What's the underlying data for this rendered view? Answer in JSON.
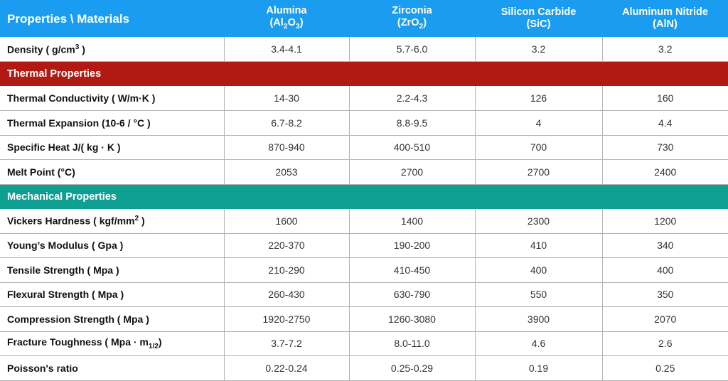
{
  "header": {
    "corner": "Properties \\ Materials",
    "materials": [
      {
        "name": "Alumina",
        "formula_prefix": "(Al",
        "formula_sub1": "2",
        "formula_mid": "O",
        "formula_sub2": "3",
        "formula_suffix": ")"
      },
      {
        "name": "Zirconia",
        "formula_prefix": "(ZrO",
        "formula_sub1": "2",
        "formula_mid": "",
        "formula_sub2": "",
        "formula_suffix": ")"
      },
      {
        "name": "Silicon Carbide",
        "formula_prefix": "(SiC)",
        "formula_sub1": "",
        "formula_mid": "",
        "formula_sub2": "",
        "formula_suffix": ""
      },
      {
        "name": "Aluminum Nitride",
        "formula_prefix": "(AlN)",
        "formula_sub1": "",
        "formula_mid": "",
        "formula_sub2": "",
        "formula_suffix": ""
      }
    ]
  },
  "density": {
    "label": "Density ( g/cm",
    "label_sup": "3",
    "label_end": " )",
    "values": [
      "3.4-4.1",
      "5.7-6.0",
      "3.2",
      "3.2"
    ]
  },
  "thermal": {
    "title": "Thermal Properties",
    "color": "#b01a13",
    "rows": [
      {
        "label": "Thermal Conductivity ( W/m·K )",
        "values": [
          "14-30",
          "2.2-4.3",
          "126",
          "160"
        ]
      },
      {
        "label": "Thermal Expansion (10-6 / °C )",
        "values": [
          "6.7-8.2",
          "8.8-9.5",
          "4",
          "4.4"
        ]
      },
      {
        "label": "Specific Heat J/( kg · K )",
        "values": [
          "870-940",
          "400-510",
          "700",
          "730"
        ]
      },
      {
        "label": "Melt Point (°C)",
        "values": [
          "2053",
          "2700",
          "2700",
          "2400"
        ]
      }
    ]
  },
  "mechanical": {
    "title": "Mechanical Properties",
    "color": "#0f9f92",
    "hardness": {
      "label": "Vickers Hardness ( kgf/mm",
      "label_sup": "2",
      "label_end": " )",
      "values": [
        "1600",
        "1400",
        "2300",
        "1200"
      ]
    },
    "rows": [
      {
        "label": "Young’s Modulus ( Gpa )",
        "values": [
          "220-370",
          "190-200",
          "410",
          "340"
        ]
      },
      {
        "label": "Tensile Strength ( Mpa )",
        "values": [
          "210-290",
          "410-450",
          "400",
          "400"
        ]
      },
      {
        "label": "Flexural Strength ( Mpa )",
        "values": [
          "260-430",
          "630-790",
          "550",
          "350"
        ]
      },
      {
        "label": "Compression Strength ( Mpa )",
        "values": [
          "1920-2750",
          "1260-3080",
          "3900",
          "2070"
        ]
      }
    ],
    "toughness": {
      "label": "Fracture Toughness ( Mpa · m",
      "label_sub": "1/2",
      "label_end": ")",
      "values": [
        "3.7-7.2",
        "8.0-11.0",
        "4.6",
        "2.6"
      ]
    },
    "poisson": {
      "label": "Poisson's ratio",
      "values": [
        "0.22-0.24",
        "0.25-0.29",
        "0.19",
        "0.25"
      ]
    }
  },
  "colors": {
    "header": "#1a9cf0",
    "thermal": "#b01a13",
    "mechanical": "#0f9f92",
    "grid": "#b4b4b4"
  }
}
